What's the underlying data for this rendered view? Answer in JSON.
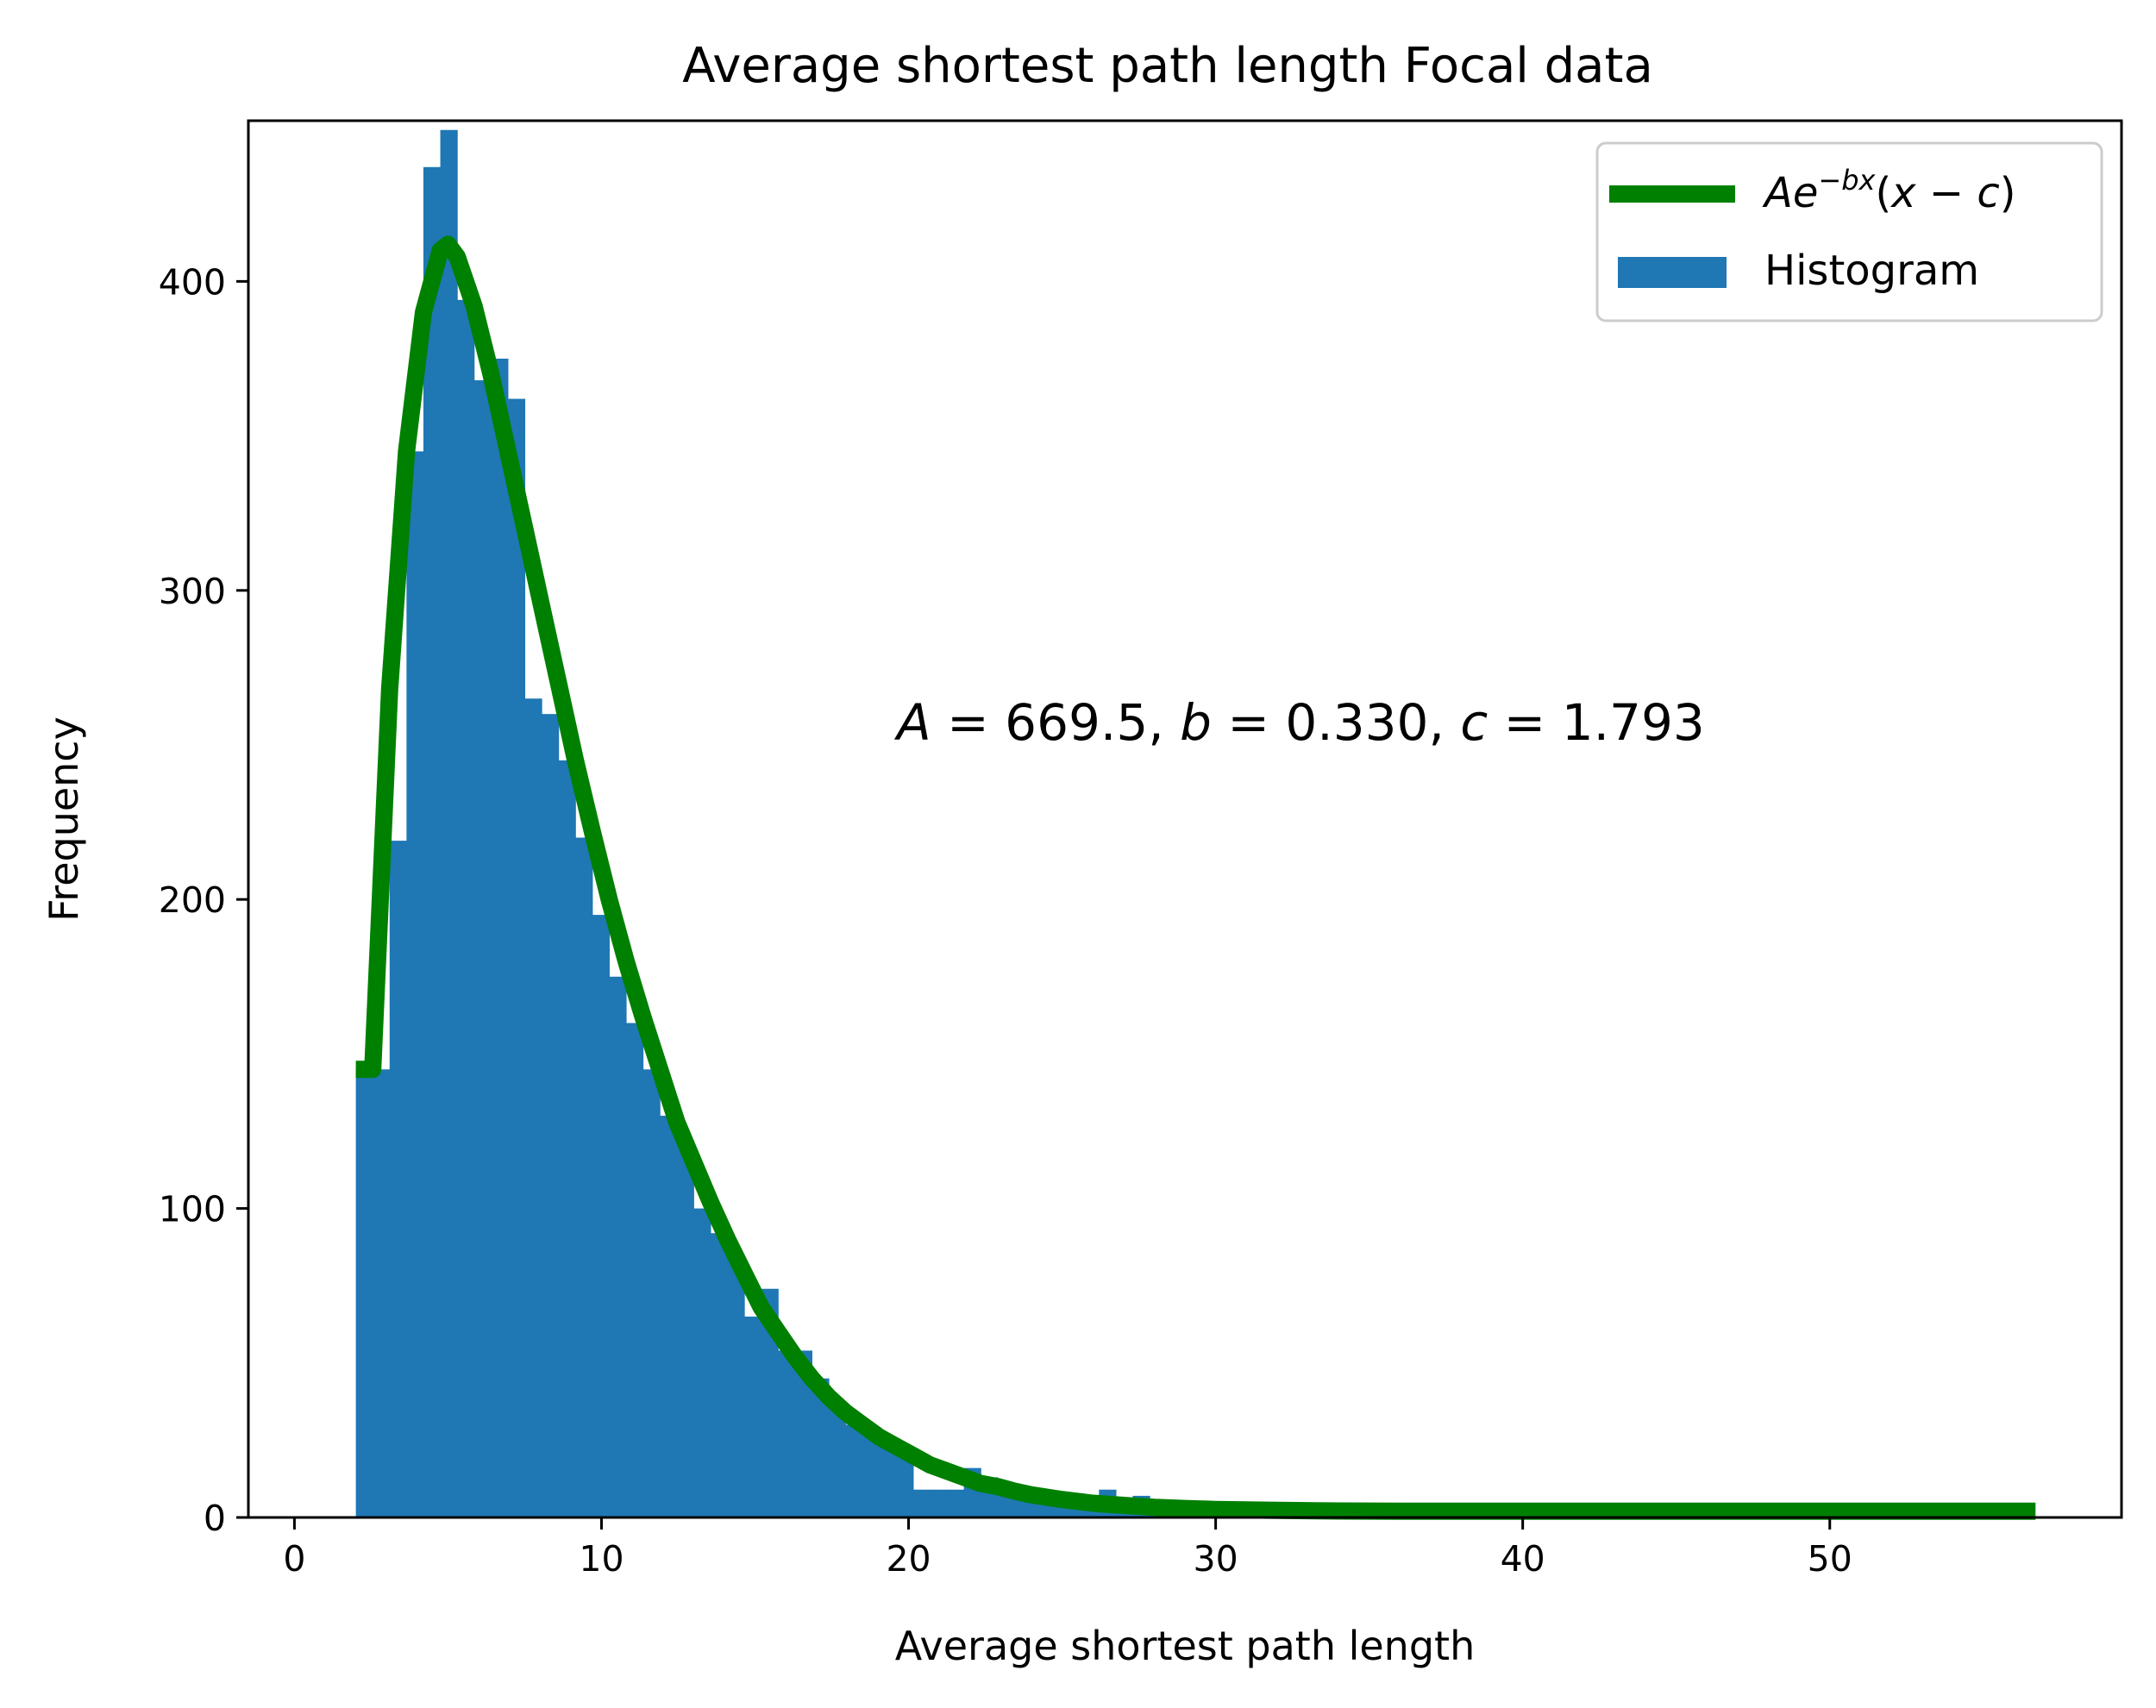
{
  "chart_data": {
    "type": "bar",
    "title": "Average shortest path length Focal data",
    "xlabel": "Average shortest path length",
    "ylabel": "Frequency",
    "xlim": [
      -1.5,
      59.5
    ],
    "ylim": [
      0,
      452
    ],
    "xticks": [
      0,
      10,
      20,
      30,
      40,
      50
    ],
    "yticks": [
      0,
      100,
      200,
      300,
      400
    ],
    "grid": false,
    "legend_position": "top-right",
    "histogram": {
      "name": "Histogram",
      "color": "#1f77b4",
      "bin_width": 0.55,
      "bin_starts": [
        2.0,
        2.55,
        3.1,
        3.65,
        4.2,
        4.75,
        5.3,
        5.85,
        6.4,
        6.95,
        7.5,
        8.05,
        8.6,
        9.15,
        9.7,
        10.25,
        10.8,
        11.35,
        11.9,
        12.45,
        13.0,
        13.55,
        14.1,
        14.65,
        15.2,
        15.75,
        16.3,
        16.85,
        17.4,
        17.95,
        18.5,
        19.05,
        19.6,
        20.15,
        20.7,
        21.25,
        21.8,
        22.35,
        22.9,
        23.45,
        24.0,
        24.55,
        25.1,
        25.65,
        26.2,
        26.75,
        27.3,
        27.85,
        28.4,
        28.95,
        29.5
      ],
      "values": [
        145,
        145,
        219,
        345,
        437,
        449,
        394,
        368,
        375,
        362,
        265,
        260,
        245,
        220,
        195,
        175,
        160,
        145,
        130,
        122,
        100,
        92,
        85,
        65,
        74,
        54,
        54,
        45,
        37,
        30,
        28,
        24,
        23,
        9,
        9,
        9,
        16,
        13,
        10,
        8,
        5,
        5,
        4,
        3,
        9,
        3,
        7,
        2,
        2,
        1,
        1
      ]
    },
    "fit": {
      "name": "$Ae^{-bx}(x-c)$",
      "color": "#008000",
      "A": 669.5,
      "b": 0.33,
      "c": 1.793,
      "x_range": [
        2.0,
        56.7
      ],
      "curve_x": [
        2.0,
        2.55,
        3.1,
        3.65,
        4.2,
        4.75,
        5.0,
        5.3,
        5.85,
        6.4,
        6.95,
        7.5,
        8.05,
        8.6,
        9.15,
        9.7,
        10.25,
        10.8,
        11.35,
        11.9,
        12.45,
        13.0,
        13.55,
        14.1,
        14.65,
        15.2,
        15.75,
        16.3,
        16.85,
        17.4,
        17.95,
        18.5,
        19.05,
        19.6,
        20.15,
        20.7,
        21.25,
        21.8,
        22.35,
        22.9,
        23.45,
        24.0,
        25.0,
        26.0,
        27.0,
        28.0,
        29.0,
        30.0,
        32.0,
        34.0,
        36.0,
        40.0,
        45.0,
        50.0,
        56.7
      ],
      "curve_y": [
        145,
        145,
        268,
        345,
        390,
        410,
        412,
        408,
        392,
        370,
        345,
        320,
        295,
        270,
        245,
        222,
        200,
        180,
        162,
        145,
        128,
        115,
        102,
        90,
        79,
        68,
        60,
        52,
        45,
        39,
        34,
        30,
        26,
        23,
        20,
        17,
        15,
        13,
        11,
        10,
        8.5,
        7.3,
        5.8,
        4.6,
        3.9,
        3.3,
        2.9,
        2.6,
        2.3,
        2.1,
        2.0,
        2.0,
        2.0,
        2.0,
        2.0
      ]
    },
    "annotation": {
      "A_value": "669.5",
      "b_value": "0.330",
      "c_value": "1.793",
      "x": 20,
      "y": 250
    }
  }
}
